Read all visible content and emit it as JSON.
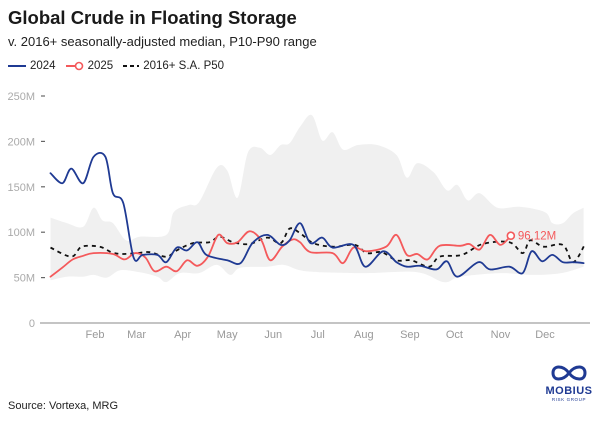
{
  "header": {
    "title": "Global Crude in Floating Storage",
    "subtitle": "v. 2016+ seasonally-adjusted median, P10-P90 range"
  },
  "legend": [
    {
      "label": "2024",
      "style": "solid",
      "color": "#1f3a93"
    },
    {
      "label": "2025",
      "style": "solid-marker",
      "color": "#f4595b"
    },
    {
      "label": "2016+ S.A. P50",
      "style": "dashed",
      "color": "#111111"
    }
  ],
  "footer": {
    "source": "Source: Vortexa, MRG"
  },
  "logo": {
    "name": "MOBIUS",
    "tagline": "RISK GROUP",
    "color": "#1f3a93"
  },
  "chart_data": {
    "type": "line",
    "title": "Global Crude in Floating Storage",
    "subtitle": "v. 2016+ seasonally-adjusted median, P10-P90 range",
    "xlabel": "",
    "ylabel": "",
    "x_ticks": [
      "Feb",
      "Mar",
      "Apr",
      "May",
      "Jun",
      "Jul",
      "Aug",
      "Sep",
      "Oct",
      "Nov",
      "Dec"
    ],
    "y_ticks": [
      "0",
      "50M",
      "100M",
      "150M",
      "200M",
      "250M"
    ],
    "y_tick_values": [
      0,
      50,
      100,
      150,
      200,
      250
    ],
    "ylim": [
      0,
      250
    ],
    "y_unit": "M",
    "grid": false,
    "legend_position": "top-left",
    "annotation": {
      "text": "96,12M",
      "series": "2025",
      "x": "11-08",
      "y": 96.12
    },
    "band": {
      "color": "#f0f0f0",
      "upper": [
        [
          "01-02",
          116
        ],
        [
          "01-13",
          110
        ],
        [
          "01-24",
          106
        ],
        [
          "01-31",
          127
        ],
        [
          "02-06",
          113
        ],
        [
          "02-13",
          110
        ],
        [
          "02-22",
          91
        ],
        [
          "03-03",
          95
        ],
        [
          "03-21",
          97
        ],
        [
          "03-26",
          122
        ],
        [
          "04-05",
          130
        ],
        [
          "04-12",
          133
        ],
        [
          "04-24",
          171
        ],
        [
          "05-01",
          168
        ],
        [
          "05-08",
          138
        ],
        [
          "05-15",
          188
        ],
        [
          "05-23",
          193
        ],
        [
          "05-30",
          185
        ],
        [
          "06-06",
          196
        ],
        [
          "06-12",
          198
        ],
        [
          "06-19",
          216
        ],
        [
          "06-27",
          229
        ],
        [
          "07-04",
          201
        ],
        [
          "07-11",
          210
        ],
        [
          "07-18",
          191
        ],
        [
          "07-28",
          196
        ],
        [
          "08-10",
          196
        ],
        [
          "08-23",
          185
        ],
        [
          "08-30",
          160
        ],
        [
          "09-06",
          176
        ],
        [
          "09-17",
          166
        ],
        [
          "09-26",
          146
        ],
        [
          "10-03",
          152
        ],
        [
          "10-10",
          135
        ],
        [
          "10-18",
          143
        ],
        [
          "10-30",
          127
        ],
        [
          "11-14",
          128
        ],
        [
          "12-01",
          122
        ],
        [
          "12-06",
          110
        ],
        [
          "12-13",
          110
        ],
        [
          "12-20",
          121
        ],
        [
          "12-27",
          127
        ]
      ],
      "lower": [
        [
          "01-02",
          47
        ],
        [
          "01-13",
          51
        ],
        [
          "01-24",
          51
        ],
        [
          "01-31",
          53
        ],
        [
          "02-09",
          50
        ],
        [
          "02-18",
          58
        ],
        [
          "03-03",
          56
        ],
        [
          "03-15",
          51
        ],
        [
          "03-21",
          45
        ],
        [
          "03-30",
          55
        ],
        [
          "04-12",
          55
        ],
        [
          "04-24",
          64
        ],
        [
          "05-03",
          53
        ],
        [
          "05-10",
          61
        ],
        [
          "05-28",
          62
        ],
        [
          "06-08",
          64
        ],
        [
          "06-19",
          58
        ],
        [
          "07-02",
          56
        ],
        [
          "08-03",
          55
        ],
        [
          "09-06",
          56
        ],
        [
          "09-24",
          45
        ],
        [
          "10-05",
          51
        ],
        [
          "11-01",
          55
        ],
        [
          "11-23",
          53
        ],
        [
          "12-12",
          55
        ],
        [
          "12-27",
          62
        ]
      ]
    },
    "series": [
      {
        "name": "2024",
        "color": "#1f3a93",
        "dash": false,
        "points": [
          [
            "01-02",
            165
          ],
          [
            "01-10",
            154
          ],
          [
            "01-16",
            170
          ],
          [
            "01-24",
            154
          ],
          [
            "01-31",
            183
          ],
          [
            "02-08",
            183
          ],
          [
            "02-13",
            143
          ],
          [
            "02-20",
            132
          ],
          [
            "02-27",
            72
          ],
          [
            "03-05",
            75
          ],
          [
            "03-15",
            75
          ],
          [
            "03-21",
            67
          ],
          [
            "03-28",
            83
          ],
          [
            "04-04",
            80
          ],
          [
            "04-11",
            89
          ],
          [
            "04-17",
            75
          ],
          [
            "05-01",
            69
          ],
          [
            "05-10",
            66
          ],
          [
            "05-18",
            88
          ],
          [
            "05-28",
            97
          ],
          [
            "06-06",
            86
          ],
          [
            "06-12",
            91
          ],
          [
            "06-19",
            110
          ],
          [
            "06-26",
            88
          ],
          [
            "07-04",
            94
          ],
          [
            "07-11",
            83
          ],
          [
            "07-25",
            86
          ],
          [
            "08-02",
            62
          ],
          [
            "08-14",
            79
          ],
          [
            "08-23",
            67
          ],
          [
            "08-30",
            62
          ],
          [
            "09-08",
            63
          ],
          [
            "09-19",
            59
          ],
          [
            "09-26",
            68
          ],
          [
            "10-03",
            51
          ],
          [
            "10-17",
            67
          ],
          [
            "10-25",
            59
          ],
          [
            "11-07",
            62
          ],
          [
            "11-16",
            55
          ],
          [
            "11-22",
            79
          ],
          [
            "11-29",
            68
          ],
          [
            "12-06",
            75
          ],
          [
            "12-13",
            67
          ],
          [
            "12-20",
            67
          ],
          [
            "12-27",
            66
          ]
        ]
      },
      {
        "name": "2025",
        "color": "#f4595b",
        "dash": false,
        "points": [
          [
            "01-02",
            51
          ],
          [
            "01-10",
            61
          ],
          [
            "01-17",
            70
          ],
          [
            "01-24",
            74
          ],
          [
            "01-31",
            77
          ],
          [
            "02-13",
            76
          ],
          [
            "02-21",
            70
          ],
          [
            "02-28",
            77
          ],
          [
            "03-07",
            72
          ],
          [
            "03-13",
            57
          ],
          [
            "03-21",
            62
          ],
          [
            "03-28",
            57
          ],
          [
            "04-04",
            69
          ],
          [
            "04-11",
            63
          ],
          [
            "04-18",
            73
          ],
          [
            "04-25",
            97
          ],
          [
            "05-01",
            88
          ],
          [
            "05-08",
            89
          ],
          [
            "05-16",
            101
          ],
          [
            "05-24",
            91
          ],
          [
            "05-30",
            69
          ],
          [
            "06-07",
            84
          ],
          [
            "06-14",
            92
          ],
          [
            "06-19",
            89
          ],
          [
            "06-26",
            78
          ],
          [
            "07-11",
            77
          ],
          [
            "07-18",
            66
          ],
          [
            "07-25",
            83
          ],
          [
            "08-03",
            79
          ],
          [
            "08-16",
            84
          ],
          [
            "08-23",
            97
          ],
          [
            "08-30",
            75
          ],
          [
            "09-06",
            76
          ],
          [
            "09-13",
            70
          ],
          [
            "09-21",
            85
          ],
          [
            "10-05",
            85
          ],
          [
            "10-11",
            87
          ],
          [
            "10-18",
            81
          ],
          [
            "10-25",
            97
          ],
          [
            "11-01",
            86
          ],
          [
            "11-08",
            96.12
          ]
        ]
      },
      {
        "name": "2016+ S.A. P50",
        "color": "#111111",
        "dash": true,
        "points": [
          [
            "01-02",
            83
          ],
          [
            "01-16",
            73
          ],
          [
            "01-23",
            84
          ],
          [
            "02-04",
            84
          ],
          [
            "02-12",
            78
          ],
          [
            "02-19",
            76
          ],
          [
            "03-01",
            77
          ],
          [
            "03-10",
            78
          ],
          [
            "03-21",
            73
          ],
          [
            "03-28",
            80
          ],
          [
            "04-08",
            88
          ],
          [
            "04-19",
            89
          ],
          [
            "04-26",
            95
          ],
          [
            "05-05",
            89
          ],
          [
            "05-16",
            87
          ],
          [
            "05-28",
            94
          ],
          [
            "06-06",
            88
          ],
          [
            "06-12",
            104
          ],
          [
            "06-19",
            99
          ],
          [
            "06-28",
            88
          ],
          [
            "07-11",
            84
          ],
          [
            "07-26",
            86
          ],
          [
            "08-03",
            77
          ],
          [
            "08-13",
            78
          ],
          [
            "08-23",
            69
          ],
          [
            "09-02",
            69
          ],
          [
            "09-14",
            62
          ],
          [
            "09-21",
            73
          ],
          [
            "10-06",
            75
          ],
          [
            "10-20",
            87
          ],
          [
            "11-07",
            89
          ],
          [
            "11-16",
            77
          ],
          [
            "11-21",
            91
          ],
          [
            "11-30",
            84
          ],
          [
            "12-13",
            86
          ],
          [
            "12-20",
            67
          ],
          [
            "12-28",
            87
          ]
        ]
      }
    ]
  }
}
